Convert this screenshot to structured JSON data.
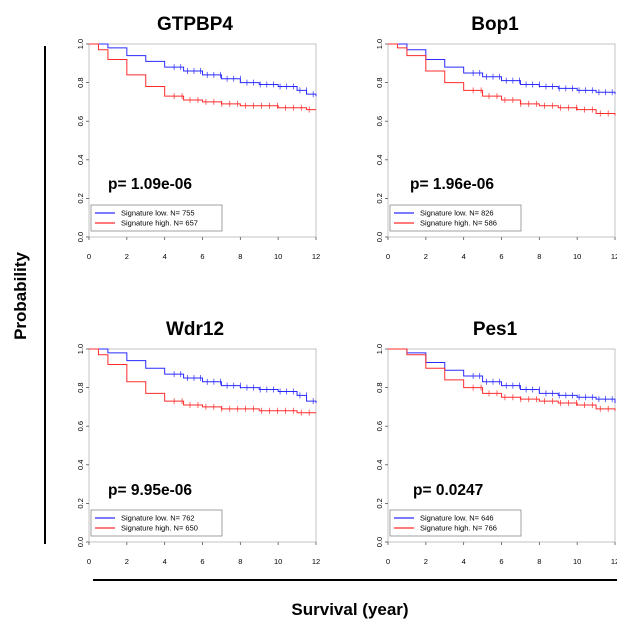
{
  "figure": {
    "ylabel": "Probability",
    "xlabel": "Survival (year)"
  },
  "chart_data": [
    {
      "type": "line",
      "title": "GTPBP4",
      "annotation": "p= 1.09e-06",
      "xlim": [
        0,
        12
      ],
      "ylim": [
        0,
        1
      ],
      "xticks": [
        "0",
        "2",
        "4",
        "6",
        "8",
        "10",
        "12"
      ],
      "yticks": [
        "0.0",
        "0.2",
        "0.4",
        "0.6",
        "0.8",
        "1.0"
      ],
      "legend_position": "bottom-left",
      "series": [
        {
          "name": "Signature low. N= 755",
          "color": "#2b2bff",
          "x": [
            0,
            1,
            2,
            3,
            4,
            5,
            6,
            7,
            8,
            9,
            10,
            11,
            11.5,
            12
          ],
          "y": [
            1.0,
            0.98,
            0.94,
            0.91,
            0.88,
            0.86,
            0.84,
            0.82,
            0.8,
            0.79,
            0.78,
            0.76,
            0.74,
            0.73
          ]
        },
        {
          "name": "Signature high. N= 657",
          "color": "#ff2b2b",
          "x": [
            0,
            0.5,
            1,
            2,
            3,
            4,
            5,
            6,
            7,
            8,
            9,
            10,
            11,
            11.5,
            12
          ],
          "y": [
            1.0,
            0.97,
            0.92,
            0.84,
            0.78,
            0.73,
            0.71,
            0.7,
            0.69,
            0.68,
            0.68,
            0.67,
            0.67,
            0.66,
            0.66
          ]
        }
      ]
    },
    {
      "type": "line",
      "title": "Bop1",
      "annotation": "p= 1.96e-06",
      "xlim": [
        0,
        12
      ],
      "ylim": [
        0,
        1
      ],
      "xticks": [
        "0",
        "2",
        "4",
        "6",
        "8",
        "10",
        "12"
      ],
      "yticks": [
        "0.0",
        "0.2",
        "0.4",
        "0.6",
        "0.8",
        "1.0"
      ],
      "legend_position": "bottom-left",
      "series": [
        {
          "name": "Signature low. N= 826",
          "color": "#2b2bff",
          "x": [
            0,
            1,
            2,
            3,
            4,
            5,
            6,
            7,
            8,
            9,
            10,
            11,
            12
          ],
          "y": [
            1.0,
            0.97,
            0.92,
            0.88,
            0.85,
            0.83,
            0.81,
            0.79,
            0.78,
            0.77,
            0.76,
            0.75,
            0.74
          ]
        },
        {
          "name": "Signature high. N= 586",
          "color": "#ff2b2b",
          "x": [
            0,
            0.5,
            1,
            2,
            3,
            4,
            5,
            6,
            7,
            8,
            9,
            10,
            11,
            12
          ],
          "y": [
            1.0,
            0.98,
            0.94,
            0.86,
            0.8,
            0.76,
            0.73,
            0.71,
            0.69,
            0.68,
            0.67,
            0.66,
            0.64,
            0.63
          ]
        }
      ]
    },
    {
      "type": "line",
      "title": "Wdr12",
      "annotation": "p= 9.95e-06",
      "xlim": [
        0,
        12
      ],
      "ylim": [
        0,
        1
      ],
      "xticks": [
        "0",
        "2",
        "4",
        "6",
        "8",
        "10",
        "12"
      ],
      "yticks": [
        "0.0",
        "0.2",
        "0.4",
        "0.6",
        "0.8",
        "1.0"
      ],
      "legend_position": "bottom-left",
      "series": [
        {
          "name": "Signature low. N= 762",
          "color": "#2b2bff",
          "x": [
            0,
            1,
            2,
            3,
            4,
            5,
            6,
            7,
            8,
            9,
            10,
            11,
            11.5,
            12
          ],
          "y": [
            1.0,
            0.98,
            0.94,
            0.9,
            0.87,
            0.85,
            0.83,
            0.81,
            0.8,
            0.79,
            0.78,
            0.76,
            0.73,
            0.72
          ]
        },
        {
          "name": "Signature high. N= 650",
          "color": "#ff2b2b",
          "x": [
            0,
            0.5,
            1,
            2,
            3,
            4,
            5,
            6,
            7,
            8,
            9,
            10,
            11,
            12
          ],
          "y": [
            1.0,
            0.97,
            0.92,
            0.83,
            0.77,
            0.73,
            0.71,
            0.7,
            0.69,
            0.69,
            0.68,
            0.68,
            0.67,
            0.67
          ]
        }
      ]
    },
    {
      "type": "line",
      "title": "Pes1",
      "annotation": "p= 0.0247",
      "xlim": [
        0,
        12
      ],
      "ylim": [
        0,
        1
      ],
      "xticks": [
        "0",
        "2",
        "4",
        "6",
        "8",
        "10",
        "12"
      ],
      "yticks": [
        "0.0",
        "0.2",
        "0.4",
        "0.6",
        "0.8",
        "1.0"
      ],
      "legend_position": "bottom-left",
      "series": [
        {
          "name": "Signature low. N= 646",
          "color": "#2b2bff",
          "x": [
            0,
            1,
            2,
            3,
            4,
            5,
            6,
            7,
            8,
            9,
            10,
            11,
            11.5,
            12
          ],
          "y": [
            1.0,
            0.98,
            0.93,
            0.89,
            0.86,
            0.83,
            0.81,
            0.79,
            0.77,
            0.76,
            0.75,
            0.74,
            0.74,
            0.72
          ]
        },
        {
          "name": "Signature high. N= 766",
          "color": "#ff2b2b",
          "x": [
            0,
            1,
            2,
            3,
            4,
            5,
            6,
            7,
            8,
            9,
            10,
            11,
            12
          ],
          "y": [
            1.0,
            0.97,
            0.9,
            0.84,
            0.8,
            0.77,
            0.75,
            0.74,
            0.73,
            0.72,
            0.71,
            0.69,
            0.68
          ]
        }
      ]
    }
  ]
}
